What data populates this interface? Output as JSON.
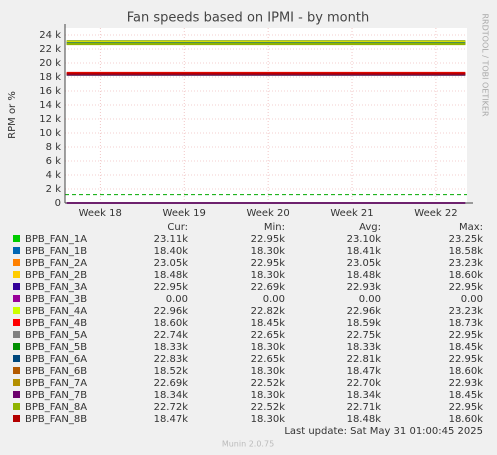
{
  "chart_data": {
    "type": "line",
    "title": "Fan speeds based on IPMI - by month",
    "y_label": "RPM or %",
    "side_label": "RRDTOOL / TOBI OETIKER",
    "footer": "Last update: Sat May 31 01:00:45 2025",
    "version": "Munin 2.0.75",
    "columns": [
      "Cur:",
      "Min:",
      "Avg:",
      "Max:"
    ],
    "grid": true,
    "xlim": [
      17.58,
      22.37
    ],
    "xticks": [
      {
        "value": 18,
        "label": "Week 18"
      },
      {
        "value": 19,
        "label": "Week 19"
      },
      {
        "value": 20,
        "label": "Week 20"
      },
      {
        "value": 21,
        "label": "Week 21"
      },
      {
        "value": 22,
        "label": "Week 22"
      }
    ],
    "ylim": [
      0,
      25000
    ],
    "yticks": [
      0,
      {
        "value": 2000,
        "label": "2 k"
      },
      {
        "value": 4000,
        "label": "4 k"
      },
      {
        "value": 6000,
        "label": "6 k"
      },
      {
        "value": 8000,
        "label": "8 k"
      },
      {
        "value": 10000,
        "label": "10 k"
      },
      {
        "value": 12000,
        "label": "12 k"
      },
      {
        "value": 14000,
        "label": "14 k"
      },
      {
        "value": 16000,
        "label": "16 k"
      },
      {
        "value": 18000,
        "label": "18 k"
      },
      {
        "value": 20000,
        "label": "20 k"
      },
      {
        "value": 22000,
        "label": "22 k"
      },
      {
        "value": 24000,
        "label": "24 k"
      }
    ],
    "hline": {
      "value": 1200,
      "color": "#00aa00"
    },
    "x": [
      17.6,
      20,
      22.35
    ],
    "series": [
      {
        "name": "BPB_FAN_1A",
        "color": "#00cc00",
        "values": [
          23100,
          23100,
          23100
        ],
        "stats": [
          "23.11k",
          "22.95k",
          "23.10k",
          "23.25k"
        ]
      },
      {
        "name": "BPB_FAN_1B",
        "color": "#0066b3",
        "values": [
          18410,
          18410,
          18410
        ],
        "stats": [
          "18.40k",
          "18.30k",
          "18.41k",
          "18.58k"
        ]
      },
      {
        "name": "BPB_FAN_2A",
        "color": "#ff8000",
        "values": [
          23050,
          23050,
          23050
        ],
        "stats": [
          "23.05k",
          "22.95k",
          "23.05k",
          "23.23k"
        ]
      },
      {
        "name": "BPB_FAN_2B",
        "color": "#ffcc00",
        "values": [
          18480,
          18480,
          18480
        ],
        "stats": [
          "18.48k",
          "18.30k",
          "18.48k",
          "18.60k"
        ]
      },
      {
        "name": "BPB_FAN_3A",
        "color": "#330099",
        "values": [
          22930,
          22930,
          22930
        ],
        "stats": [
          "22.95k",
          "22.69k",
          "22.93k",
          "22.95k"
        ]
      },
      {
        "name": "BPB_FAN_3B",
        "color": "#990099",
        "values": [
          0,
          0,
          0
        ],
        "stats": [
          "0.00",
          "0.00",
          "0.00",
          "0.00"
        ]
      },
      {
        "name": "BPB_FAN_4A",
        "color": "#ccff00",
        "values": [
          22960,
          22960,
          22960
        ],
        "stats": [
          "22.96k",
          "22.82k",
          "22.96k",
          "23.23k"
        ]
      },
      {
        "name": "BPB_FAN_4B",
        "color": "#ff0000",
        "values": [
          18590,
          18590,
          18590
        ],
        "stats": [
          "18.60k",
          "18.45k",
          "18.59k",
          "18.73k"
        ]
      },
      {
        "name": "BPB_FAN_5A",
        "color": "#808080",
        "values": [
          22750,
          22750,
          22750
        ],
        "stats": [
          "22.74k",
          "22.65k",
          "22.75k",
          "22.95k"
        ]
      },
      {
        "name": "BPB_FAN_5B",
        "color": "#008f00",
        "values": [
          18330,
          18330,
          18330
        ],
        "stats": [
          "18.33k",
          "18.30k",
          "18.33k",
          "18.45k"
        ]
      },
      {
        "name": "BPB_FAN_6A",
        "color": "#00487d",
        "values": [
          22810,
          22810,
          22810
        ],
        "stats": [
          "22.83k",
          "22.65k",
          "22.81k",
          "22.95k"
        ]
      },
      {
        "name": "BPB_FAN_6B",
        "color": "#b35a00",
        "values": [
          18470,
          18470,
          18470
        ],
        "stats": [
          "18.52k",
          "18.30k",
          "18.47k",
          "18.60k"
        ]
      },
      {
        "name": "BPB_FAN_7A",
        "color": "#b38f00",
        "values": [
          22700,
          22700,
          22700
        ],
        "stats": [
          "22.69k",
          "22.52k",
          "22.70k",
          "22.93k"
        ]
      },
      {
        "name": "BPB_FAN_7B",
        "color": "#6b006b",
        "values": [
          18340,
          18340,
          18340
        ],
        "stats": [
          "18.34k",
          "18.30k",
          "18.34k",
          "18.45k"
        ]
      },
      {
        "name": "BPB_FAN_8A",
        "color": "#8fb300",
        "values": [
          22710,
          22710,
          22710
        ],
        "stats": [
          "22.72k",
          "22.52k",
          "22.71k",
          "22.95k"
        ]
      },
      {
        "name": "BPB_FAN_8B",
        "color": "#b30000",
        "values": [
          18480,
          18480,
          18480
        ],
        "stats": [
          "18.47k",
          "18.30k",
          "18.48k",
          "18.60k"
        ]
      }
    ]
  }
}
